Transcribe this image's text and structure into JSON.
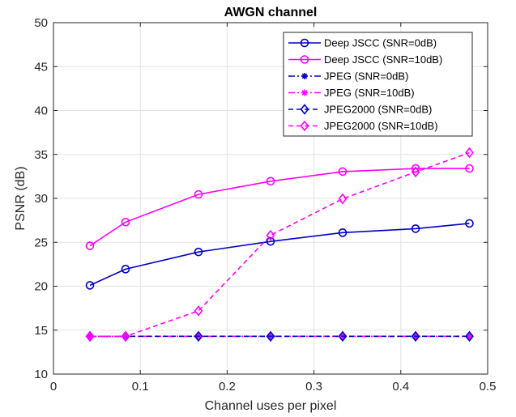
{
  "chart_data": {
    "type": "line",
    "title": "AWGN channel",
    "xlabel": "Channel uses per pixel",
    "ylabel": "PSNR (dB)",
    "xlim": [
      0,
      0.5
    ],
    "ylim": [
      10,
      50
    ],
    "xticks": [
      0,
      0.1,
      0.2,
      0.3,
      0.4,
      0.5
    ],
    "xtick_labels": [
      "0",
      "0.1",
      "0.2",
      "0.3",
      "0.4",
      "0.5"
    ],
    "yticks": [
      10,
      15,
      20,
      25,
      30,
      35,
      40,
      45,
      50
    ],
    "ytick_labels": [
      "10",
      "15",
      "20",
      "25",
      "30",
      "35",
      "40",
      "45",
      "50"
    ],
    "grid": true,
    "legend_position": "top-right",
    "series": [
      {
        "name": "Deep JSCC (SNR=0dB)",
        "color": "#0000cc",
        "dash": "solid",
        "marker": "circle",
        "x": [
          0.042,
          0.083,
          0.167,
          0.25,
          0.333,
          0.417,
          0.479
        ],
        "y": [
          20.1,
          21.95,
          23.9,
          25.1,
          26.1,
          26.55,
          27.15
        ]
      },
      {
        "name": "Deep JSCC (SNR=10dB)",
        "color": "#ff00ff",
        "dash": "solid",
        "marker": "circle",
        "x": [
          0.042,
          0.083,
          0.167,
          0.25,
          0.333,
          0.417,
          0.479
        ],
        "y": [
          24.6,
          27.3,
          30.45,
          31.95,
          33.05,
          33.4,
          33.4
        ]
      },
      {
        "name": "JPEG (SNR=0dB)",
        "color": "#0000cc",
        "dash": "dashdot",
        "marker": "star",
        "x": [
          0.042,
          0.083,
          0.167,
          0.25,
          0.333,
          0.417,
          0.479
        ],
        "y": [
          14.3,
          14.3,
          14.3,
          14.3,
          14.3,
          14.3,
          14.3
        ]
      },
      {
        "name": "JPEG (SNR=10dB)",
        "color": "#ff00ff",
        "dash": "dashdot",
        "marker": "star",
        "x": [
          0.042,
          0.083,
          0.167,
          0.25,
          0.333,
          0.417,
          0.479
        ],
        "y": [
          14.3,
          14.3,
          14.3,
          14.3,
          14.3,
          14.3,
          14.3
        ]
      },
      {
        "name": "JPEG2000 (SNR=0dB)",
        "color": "#0000cc",
        "dash": "dash",
        "marker": "diamond",
        "x": [
          0.042,
          0.083,
          0.167,
          0.25,
          0.333,
          0.417,
          0.479
        ],
        "y": [
          14.3,
          14.3,
          14.3,
          14.3,
          14.3,
          14.3,
          14.3
        ]
      },
      {
        "name": "JPEG2000 (SNR=10dB)",
        "color": "#ff00ff",
        "dash": "dash",
        "marker": "diamond",
        "x": [
          0.042,
          0.083,
          0.167,
          0.25,
          0.333,
          0.417,
          0.479
        ],
        "y": [
          14.3,
          14.3,
          17.2,
          25.8,
          29.95,
          33.0,
          35.2
        ]
      }
    ]
  }
}
